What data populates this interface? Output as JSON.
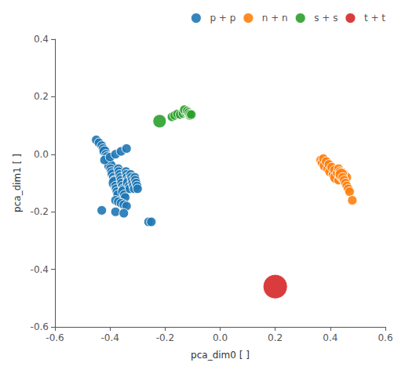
{
  "chart_data": {
    "type": "scatter",
    "xlabel": "pca_dim0 [ ]",
    "ylabel": "pca_dim1 [ ]",
    "xlim": [
      -0.6,
      0.6
    ],
    "ylim": [
      -0.6,
      0.4
    ],
    "xticks": [
      -0.6,
      -0.4,
      -0.2,
      {
        "value": 0.0,
        "label": "0.0"
      },
      0.2,
      0.4,
      0.6
    ],
    "yticks": [
      -0.6,
      -0.4,
      -0.2,
      {
        "value": 0.0,
        "label": "0.0"
      },
      0.2,
      0.4
    ],
    "grid": false,
    "legend": "upper right",
    "series": [
      {
        "name": "p + p",
        "color": "#1f77b4",
        "x": [
          -0.45,
          -0.44,
          -0.43,
          -0.425,
          -0.42,
          -0.415,
          -0.41,
          -0.408,
          -0.405,
          -0.4,
          -0.398,
          -0.395,
          -0.39,
          -0.388,
          -0.385,
          -0.382,
          -0.38,
          -0.378,
          -0.375,
          -0.372,
          -0.37,
          -0.368,
          -0.365,
          -0.362,
          -0.36,
          -0.358,
          -0.355,
          -0.352,
          -0.35,
          -0.348,
          -0.345,
          -0.342,
          -0.34,
          -0.338,
          -0.335,
          -0.332,
          -0.33,
          -0.328,
          -0.325,
          -0.322,
          -0.32,
          -0.318,
          -0.315,
          -0.312,
          -0.31,
          -0.308,
          -0.305,
          -0.302,
          -0.3,
          -0.38,
          -0.37,
          -0.36,
          -0.35,
          -0.34,
          -0.26,
          -0.25,
          -0.43,
          -0.38,
          -0.35,
          -0.42,
          -0.4,
          -0.38,
          -0.36,
          -0.34
        ],
        "y": [
          0.05,
          0.04,
          0.03,
          0.02,
          0.01,
          0.0,
          -0.01,
          -0.02,
          -0.03,
          -0.04,
          -0.05,
          -0.06,
          -0.07,
          -0.08,
          -0.09,
          -0.1,
          -0.11,
          -0.12,
          -0.13,
          -0.14,
          -0.05,
          -0.06,
          -0.07,
          -0.08,
          -0.09,
          -0.1,
          -0.11,
          -0.12,
          -0.13,
          -0.14,
          -0.15,
          -0.06,
          -0.07,
          -0.08,
          -0.09,
          -0.1,
          -0.11,
          -0.12,
          -0.07,
          -0.08,
          -0.09,
          -0.1,
          -0.11,
          -0.12,
          -0.08,
          -0.09,
          -0.1,
          -0.11,
          -0.12,
          -0.16,
          -0.165,
          -0.17,
          -0.175,
          -0.18,
          -0.235,
          -0.235,
          -0.195,
          -0.2,
          -0.205,
          -0.02,
          -0.01,
          0.0,
          0.01,
          0.02
        ],
        "sizes": [
          30,
          30,
          30,
          30,
          40,
          30,
          40,
          30,
          30,
          50,
          30,
          30,
          40,
          30,
          30,
          60,
          30,
          30,
          30,
          30,
          30,
          30,
          30,
          30,
          30,
          30,
          30,
          30,
          50,
          30,
          30,
          30,
          30,
          30,
          30,
          50,
          30,
          30,
          30,
          30,
          30,
          30,
          30,
          30,
          30,
          30,
          30,
          30,
          30,
          30,
          30,
          30,
          30,
          30,
          30,
          30,
          30,
          30,
          30,
          30,
          30,
          30,
          30,
          30
        ]
      },
      {
        "name": "n + n",
        "color": "#ff7f0e",
        "x": [
          0.365,
          0.37,
          0.375,
          0.38,
          0.385,
          0.39,
          0.395,
          0.4,
          0.405,
          0.41,
          0.415,
          0.42,
          0.425,
          0.43,
          0.435,
          0.44,
          0.445,
          0.45,
          0.455,
          0.46,
          0.43,
          0.435,
          0.44,
          0.445,
          0.45,
          0.455,
          0.46,
          0.465,
          0.47,
          0.48
        ],
        "y": [
          -0.02,
          -0.03,
          -0.015,
          -0.04,
          -0.025,
          -0.05,
          -0.035,
          -0.06,
          -0.045,
          -0.07,
          -0.055,
          -0.08,
          -0.065,
          -0.09,
          -0.075,
          -0.06,
          -0.085,
          -0.07,
          -0.095,
          -0.08,
          -0.05,
          -0.06,
          -0.07,
          -0.08,
          -0.09,
          -0.1,
          -0.11,
          -0.12,
          -0.13,
          -0.16
        ],
        "sizes": [
          30,
          30,
          30,
          40,
          30,
          30,
          30,
          40,
          30,
          30,
          30,
          50,
          30,
          30,
          30,
          30,
          30,
          30,
          30,
          30,
          30,
          30,
          50,
          30,
          30,
          30,
          30,
          30,
          30,
          30
        ]
      },
      {
        "name": "s + s",
        "color": "#2ca02c",
        "x": [
          -0.22,
          -0.175,
          -0.165,
          -0.155,
          -0.145,
          -0.135,
          -0.125,
          -0.115,
          -0.11,
          -0.13,
          -0.12,
          -0.115,
          -0.11,
          -0.105
        ],
        "y": [
          0.115,
          0.13,
          0.135,
          0.14,
          0.138,
          0.142,
          0.145,
          0.14,
          0.135,
          0.155,
          0.15,
          0.145,
          0.14,
          0.138
        ],
        "sizes": [
          60,
          30,
          30,
          30,
          30,
          30,
          30,
          30,
          30,
          30,
          30,
          30,
          30,
          30
        ]
      },
      {
        "name": "t + t",
        "color": "#d62728",
        "x": [
          0.2
        ],
        "y": [
          -0.46
        ],
        "sizes": [
          200
        ]
      }
    ]
  }
}
